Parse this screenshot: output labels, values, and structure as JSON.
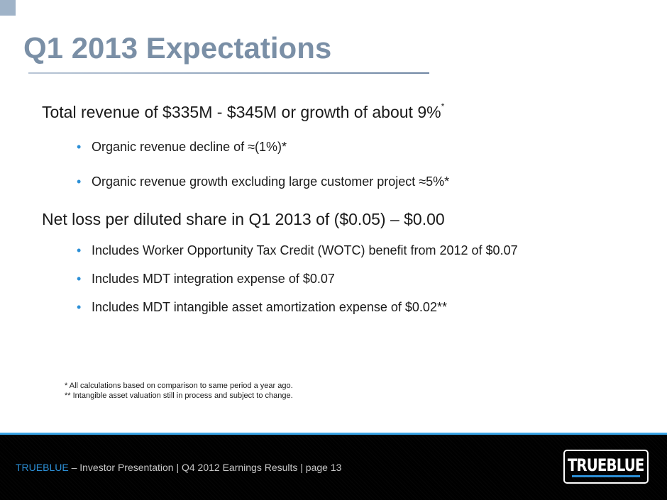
{
  "slide": {
    "title": "Q1 2013 Expectations"
  },
  "sections": [
    {
      "heading": "Total revenue of $335M - $345M or growth of about 9%",
      "heading_sup": "*",
      "bullets": [
        "Organic revenue decline of ≈(1%)*",
        "Organic revenue growth excluding large customer project ≈5%*"
      ]
    },
    {
      "heading": "Net loss per diluted share in Q1 2013 of ($0.05) – $0.00",
      "bullets": [
        "Includes Worker Opportunity Tax Credit (WOTC) benefit from 2012 of $0.07",
        "Includes MDT integration expense of $0.07",
        "Includes MDT intangible asset amortization expense of $0.02**"
      ]
    }
  ],
  "bullet_glyph": "•",
  "footnotes": [
    "* All calculations based on comparison to same period a year ago.",
    "** Intangible asset valuation still in process and subject to change."
  ],
  "footer": {
    "brand": "TRUEBLUE",
    "text": " – Investor Presentation | Q4 2012 Earnings Results | page 13"
  },
  "logo": {
    "text": "TRUEBLUE"
  },
  "colors": {
    "title": "#7a8fa6",
    "accent_blue": "#2c8fd6",
    "footer_line": "#3aa5e8",
    "footer_bg": "#000000"
  }
}
